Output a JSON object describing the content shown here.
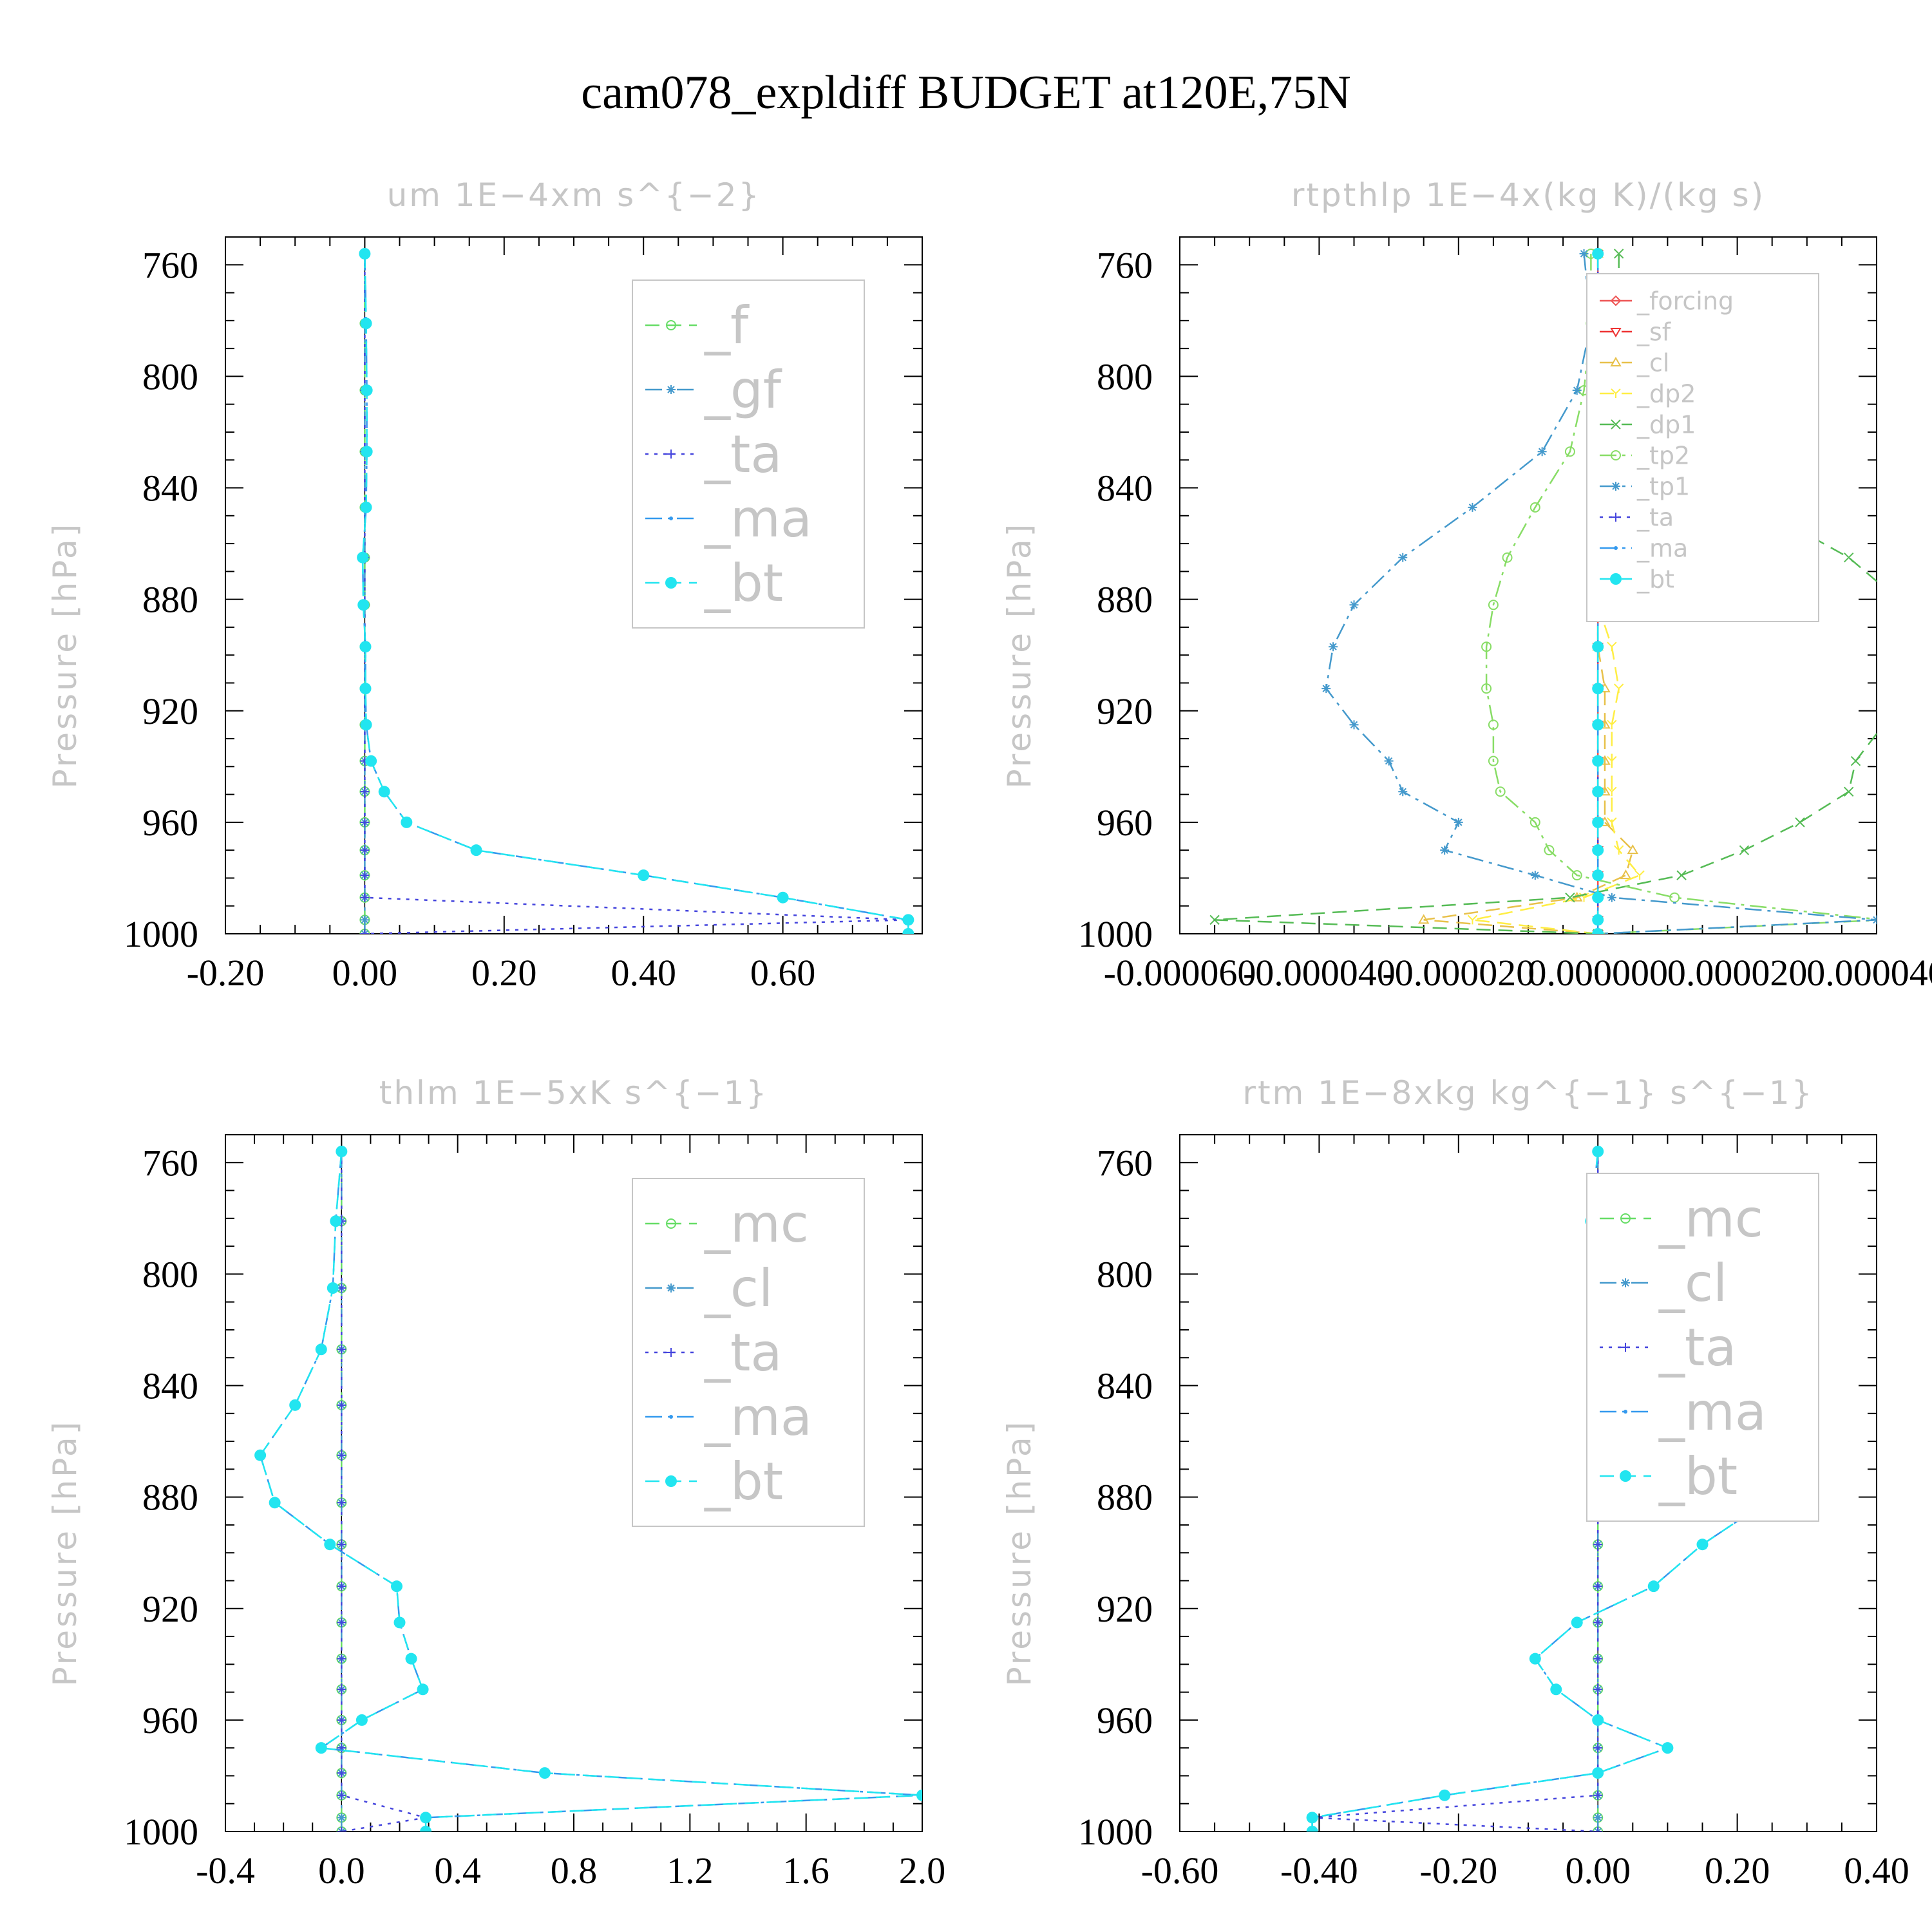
{
  "figure_title": "cam078_expldiff  BUDGET at120E,75N",
  "chart_data": [
    {
      "type": "line",
      "title": "um   1E−4xm s^{−2}",
      "ylabel": "Pressure [hPa]",
      "ylim": [
        1000,
        750
      ],
      "yticks": [
        760,
        800,
        840,
        880,
        920,
        960,
        1000
      ],
      "xlim": [
        -0.2,
        0.8
      ],
      "xticks": [
        -0.2,
        0.0,
        0.2,
        0.4,
        0.6
      ],
      "xtick_labels": [
        "-0.20",
        "0.00",
        "0.20",
        "0.40",
        "0.60"
      ],
      "levels": [
        756,
        781,
        805,
        827,
        847,
        865,
        882,
        897,
        912,
        925,
        938,
        949,
        960,
        970,
        979,
        987,
        995,
        1000
      ],
      "legend": {
        "position": "upper-right",
        "font_size": 80
      },
      "series": [
        {
          "name": "_f",
          "color": "#66dd66",
          "marker": "circle-open",
          "dash": "dash",
          "values": [
            0,
            0,
            0,
            0,
            0,
            0,
            0,
            0,
            0,
            0,
            0,
            0,
            0,
            0,
            0,
            0,
            0,
            0
          ]
        },
        {
          "name": "_gf",
          "color": "#4499cc",
          "marker": "star",
          "dash": "dashdot",
          "values": [
            0,
            0,
            0,
            0,
            0,
            0,
            0,
            0,
            0,
            0,
            0,
            0,
            0,
            0,
            0,
            0,
            0,
            0
          ]
        },
        {
          "name": "_ta",
          "color": "#4444dd",
          "marker": "plus",
          "dash": "dot",
          "values": [
            0,
            0,
            0,
            0,
            0,
            0,
            0,
            0,
            0,
            0,
            0,
            0,
            0,
            0,
            0,
            0,
            0.78,
            0
          ]
        },
        {
          "name": "_ma",
          "color": "#3399ee",
          "marker": "dot",
          "dash": "dashdot",
          "values": [
            0,
            0.002,
            0.003,
            0.003,
            0.002,
            -0.003,
            -0.002,
            0.001,
            0.001,
            0.002,
            0.009,
            0.028,
            0.06,
            0.16,
            0.4,
            0.6,
            0.78,
            0.78
          ]
        },
        {
          "name": "_bt",
          "color": "#22e5f0",
          "marker": "filled-circle",
          "dash": "dash",
          "values": [
            0,
            0.002,
            0.003,
            0.003,
            0.002,
            -0.003,
            -0.002,
            0.001,
            0.001,
            0.002,
            0.009,
            0.028,
            0.06,
            0.16,
            0.4,
            0.6,
            0.78,
            0.78
          ]
        }
      ]
    },
    {
      "type": "line",
      "title": "rtpthlp   1E−4x(kg K)/(kg s)",
      "ylabel": "Pressure [hPa]",
      "ylim": [
        1000,
        750
      ],
      "yticks": [
        760,
        800,
        840,
        880,
        920,
        960,
        1000
      ],
      "xlim": [
        -6e-05,
        4e-05
      ],
      "xticks": [
        -6e-05,
        -4e-05,
        -2e-05,
        0.0,
        2e-05,
        4e-05
      ],
      "xtick_labels": [
        "-0.000060",
        "-0.000040",
        "-0.000020",
        "0.000000",
        "0.000020",
        "0.000040"
      ],
      "levels": [
        756,
        781,
        805,
        827,
        847,
        865,
        882,
        897,
        912,
        925,
        938,
        949,
        960,
        970,
        979,
        987,
        995,
        1000
      ],
      "legend": {
        "position": "upper-right",
        "font_size": 38
      },
      "series": [
        {
          "name": "_forcing",
          "color": "#ee5555",
          "marker": "diamond-open",
          "dash": "solid",
          "values": [
            0,
            0,
            0,
            0,
            0,
            0,
            0,
            0,
            0,
            0,
            0,
            0,
            0,
            0,
            0,
            0,
            0,
            0
          ]
        },
        {
          "name": "_sf",
          "color": "#ee3333",
          "marker": "triangle-down",
          "dash": "dash",
          "values": [
            0,
            0,
            0,
            0,
            0,
            0,
            0,
            0,
            0,
            0,
            0,
            0,
            0,
            0,
            0,
            0,
            0,
            0
          ]
        },
        {
          "name": "_cl",
          "color": "#e8c14a",
          "marker": "triangle-up",
          "dash": "dash",
          "values": [
            0,
            0,
            0,
            0,
            0,
            0,
            0,
            0,
            1e-06,
            1e-06,
            1e-06,
            1e-06,
            1e-06,
            5e-06,
            4e-06,
            -3e-06,
            -2.5e-05,
            0
          ]
        },
        {
          "name": "_dp2",
          "color": "#ffee44",
          "marker": "y-mark",
          "dash": "dash",
          "values": [
            0,
            0,
            0,
            0,
            0,
            0,
            0,
            2e-06,
            3e-06,
            2e-06,
            2e-06,
            2e-06,
            2e-06,
            3e-06,
            6e-06,
            -2e-06,
            -1.8e-05,
            0
          ]
        },
        {
          "name": "_dp1",
          "color": "#55bb55",
          "marker": "x",
          "dash": "dash",
          "values": [
            3e-06,
            3e-06,
            5e-06,
            1.2e-05,
            2.3e-05,
            3.6e-05,
            4.4e-05,
            4.6e-05,
            4.6e-05,
            4.1e-05,
            3.7e-05,
            3.6e-05,
            2.9e-05,
            2.1e-05,
            1.2e-05,
            -4e-06,
            -5.5e-05,
            0
          ]
        },
        {
          "name": "_tp2",
          "color": "#88dd66",
          "marker": "circle-open",
          "dash": "dashdot",
          "values": [
            -1e-06,
            -1e-06,
            -2e-06,
            -4e-06,
            -9e-06,
            -1.3e-05,
            -1.5e-05,
            -1.6e-05,
            -1.6e-05,
            -1.5e-05,
            -1.5e-05,
            -1.4e-05,
            -9e-06,
            -7e-06,
            -3e-06,
            1.1e-05,
            4.1e-05,
            0
          ]
        },
        {
          "name": "_tp1",
          "color": "#4499cc",
          "marker": "star",
          "dash": "dashdot",
          "values": [
            -2e-06,
            -1e-06,
            -3e-06,
            -8e-06,
            -1.8e-05,
            -2.8e-05,
            -3.5e-05,
            -3.8e-05,
            -3.9e-05,
            -3.5e-05,
            -3e-05,
            -2.8e-05,
            -2e-05,
            -2.2e-05,
            -9e-06,
            2e-06,
            4e-05,
            0
          ]
        },
        {
          "name": "_ta",
          "color": "#4444dd",
          "marker": "plus",
          "dash": "dot",
          "values": [
            0,
            0,
            0,
            0,
            0,
            0,
            0,
            0,
            0,
            0,
            0,
            0,
            0,
            0,
            0,
            0,
            0,
            0
          ]
        },
        {
          "name": "_ma",
          "color": "#3399ee",
          "marker": "dot",
          "dash": "dashdot",
          "values": [
            0,
            0,
            0,
            0,
            0,
            0,
            0,
            0,
            0,
            0,
            0,
            0,
            0,
            0,
            0,
            0,
            0,
            0
          ]
        },
        {
          "name": "_bt",
          "color": "#22e5f0",
          "marker": "filled-circle",
          "dash": "dash",
          "values": [
            0,
            0,
            0,
            0,
            0,
            0,
            0,
            0,
            0,
            0,
            0,
            0,
            0,
            0,
            0,
            0,
            0,
            0
          ]
        }
      ]
    },
    {
      "type": "line",
      "title": "thlm   1E−5xK s^{−1}",
      "ylabel": "Pressure [hPa]",
      "ylim": [
        1000,
        750
      ],
      "yticks": [
        760,
        800,
        840,
        880,
        920,
        960,
        1000
      ],
      "xlim": [
        -0.4,
        2.0
      ],
      "xticks": [
        -0.4,
        0.0,
        0.4,
        0.8,
        1.2,
        1.6,
        2.0
      ],
      "xtick_labels": [
        "-0.4",
        "0.0",
        "0.4",
        "0.8",
        "1.2",
        "1.6",
        "2.0"
      ],
      "levels": [
        756,
        781,
        805,
        827,
        847,
        865,
        882,
        897,
        912,
        925,
        938,
        949,
        960,
        970,
        979,
        987,
        995,
        1000
      ],
      "legend": {
        "position": "upper-right",
        "font_size": 80
      },
      "series": [
        {
          "name": "_mc",
          "color": "#66dd66",
          "marker": "circle-open",
          "dash": "dash",
          "values": [
            0,
            0,
            0,
            0,
            0,
            0,
            0,
            0,
            0,
            0,
            0,
            0,
            0,
            0,
            0,
            0,
            0,
            0
          ]
        },
        {
          "name": "_cl",
          "color": "#4499cc",
          "marker": "star",
          "dash": "dashdot",
          "values": [
            0,
            0,
            0,
            0,
            0,
            0,
            0,
            0,
            0,
            0,
            0,
            0,
            0,
            0,
            0,
            0,
            0,
            0
          ]
        },
        {
          "name": "_ta",
          "color": "#4444dd",
          "marker": "plus",
          "dash": "dot",
          "values": [
            0,
            0,
            0,
            0,
            0,
            0,
            0,
            0,
            0,
            0,
            0,
            0,
            0,
            0,
            0,
            0,
            0.29,
            0
          ]
        },
        {
          "name": "_ma",
          "color": "#3399ee",
          "marker": "dot",
          "dash": "dashdot",
          "values": [
            0,
            -0.02,
            -0.03,
            -0.07,
            -0.16,
            -0.28,
            -0.23,
            -0.04,
            0.19,
            0.2,
            0.24,
            0.28,
            0.07,
            -0.07,
            0.7,
            2.0,
            0.29,
            0.29
          ]
        },
        {
          "name": "_bt",
          "color": "#22e5f0",
          "marker": "filled-circle",
          "dash": "dash",
          "values": [
            0,
            -0.02,
            -0.03,
            -0.07,
            -0.16,
            -0.28,
            -0.23,
            -0.04,
            0.19,
            0.2,
            0.24,
            0.28,
            0.07,
            -0.07,
            0.7,
            2.0,
            0.29,
            0.29
          ]
        }
      ]
    },
    {
      "type": "line",
      "title": "rtm   1E−8xkg kg^{−1} s^{−1}",
      "ylabel": "Pressure [hPa]",
      "ylim": [
        1000,
        750
      ],
      "yticks": [
        760,
        800,
        840,
        880,
        920,
        960,
        1000
      ],
      "xlim": [
        -0.6,
        0.4
      ],
      "xticks": [
        -0.6,
        -0.4,
        -0.2,
        0.0,
        0.2,
        0.4
      ],
      "xtick_labels": [
        "-0.60",
        "-0.40",
        "-0.20",
        "0.00",
        "0.20",
        "0.40"
      ],
      "levels": [
        756,
        781,
        805,
        827,
        847,
        865,
        882,
        897,
        912,
        925,
        938,
        949,
        960,
        970,
        979,
        987,
        995,
        1000
      ],
      "legend": {
        "position": "upper-right",
        "font_size": 80
      },
      "series": [
        {
          "name": "_mc",
          "color": "#66dd66",
          "marker": "circle-open",
          "dash": "dash",
          "values": [
            0,
            0,
            0,
            0,
            0,
            0,
            0,
            0,
            0,
            0,
            0,
            0,
            0,
            0,
            0,
            0,
            0,
            0
          ]
        },
        {
          "name": "_cl",
          "color": "#4499cc",
          "marker": "star",
          "dash": "dashdot",
          "values": [
            0,
            0,
            0,
            0,
            0,
            0,
            0,
            0,
            0,
            0,
            0,
            0,
            0,
            0,
            0,
            0,
            0,
            0
          ]
        },
        {
          "name": "_ta",
          "color": "#4444dd",
          "marker": "plus",
          "dash": "dot",
          "values": [
            0,
            0,
            0,
            0,
            0,
            0,
            0,
            0,
            0,
            0,
            0,
            0,
            0,
            0,
            0,
            0,
            -0.41,
            0
          ]
        },
        {
          "name": "_ma",
          "color": "#3399ee",
          "marker": "dot",
          "dash": "dashdot",
          "values": [
            0,
            -0.01,
            0.05,
            0.09,
            0.22,
            0.23,
            0.24,
            0.15,
            0.08,
            -0.03,
            -0.09,
            -0.06,
            0.0,
            0.1,
            0.0,
            -0.22,
            -0.41,
            -0.41
          ]
        },
        {
          "name": "_bt",
          "color": "#22e5f0",
          "marker": "filled-circle",
          "dash": "dash",
          "values": [
            0,
            -0.01,
            0.05,
            0.09,
            0.22,
            0.23,
            0.24,
            0.15,
            0.08,
            -0.03,
            -0.09,
            -0.06,
            0.0,
            0.1,
            0.0,
            -0.22,
            -0.41,
            -0.41
          ]
        }
      ]
    }
  ]
}
